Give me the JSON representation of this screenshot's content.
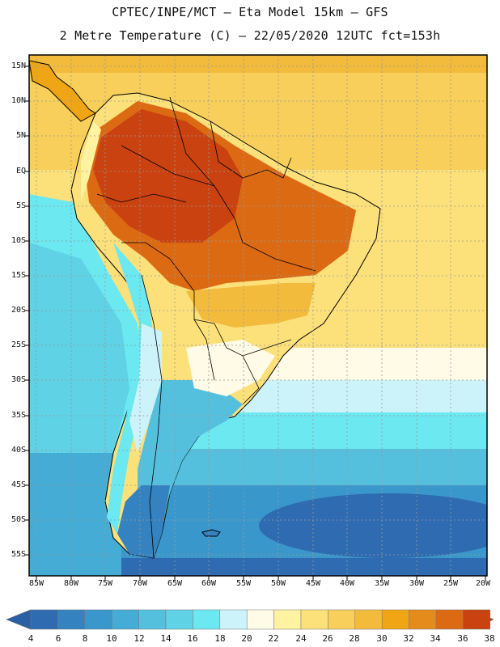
{
  "header": {
    "line1": "CPTEC/INPE/MCT –  Eta Model 15km – GFS",
    "line2": "2 Metre Temperature (C) – 22/05/2020 12UTC fct=153h"
  },
  "map": {
    "lat_labels": [
      "15N",
      "10N",
      "5N",
      "EQ",
      "5S",
      "10S",
      "15S",
      "20S",
      "25S",
      "30S",
      "35S",
      "40S",
      "45S",
      "50S",
      "55S"
    ],
    "lon_labels": [
      "85W",
      "80W",
      "75W",
      "70W",
      "65W",
      "60W",
      "55W",
      "50W",
      "45W",
      "40W",
      "35W",
      "30W",
      "25W",
      "20W"
    ]
  },
  "colorbar": {
    "labels": [
      "4",
      "6",
      "8",
      "10",
      "12",
      "14",
      "16",
      "18",
      "20",
      "22",
      "24",
      "26",
      "28",
      "30",
      "32",
      "34",
      "36",
      "38"
    ],
    "colors": [
      "#2f6bb0",
      "#3482bf",
      "#3a97cb",
      "#45acd6",
      "#55c0de",
      "#5fd2e6",
      "#6be8f0",
      "#ccf3fa",
      "#fffbe6",
      "#fff2a0",
      "#fce07a",
      "#f7cf5a",
      "#f2bb3c",
      "#f0a614",
      "#e58b1c",
      "#dc6a12",
      "#c94210"
    ]
  }
}
